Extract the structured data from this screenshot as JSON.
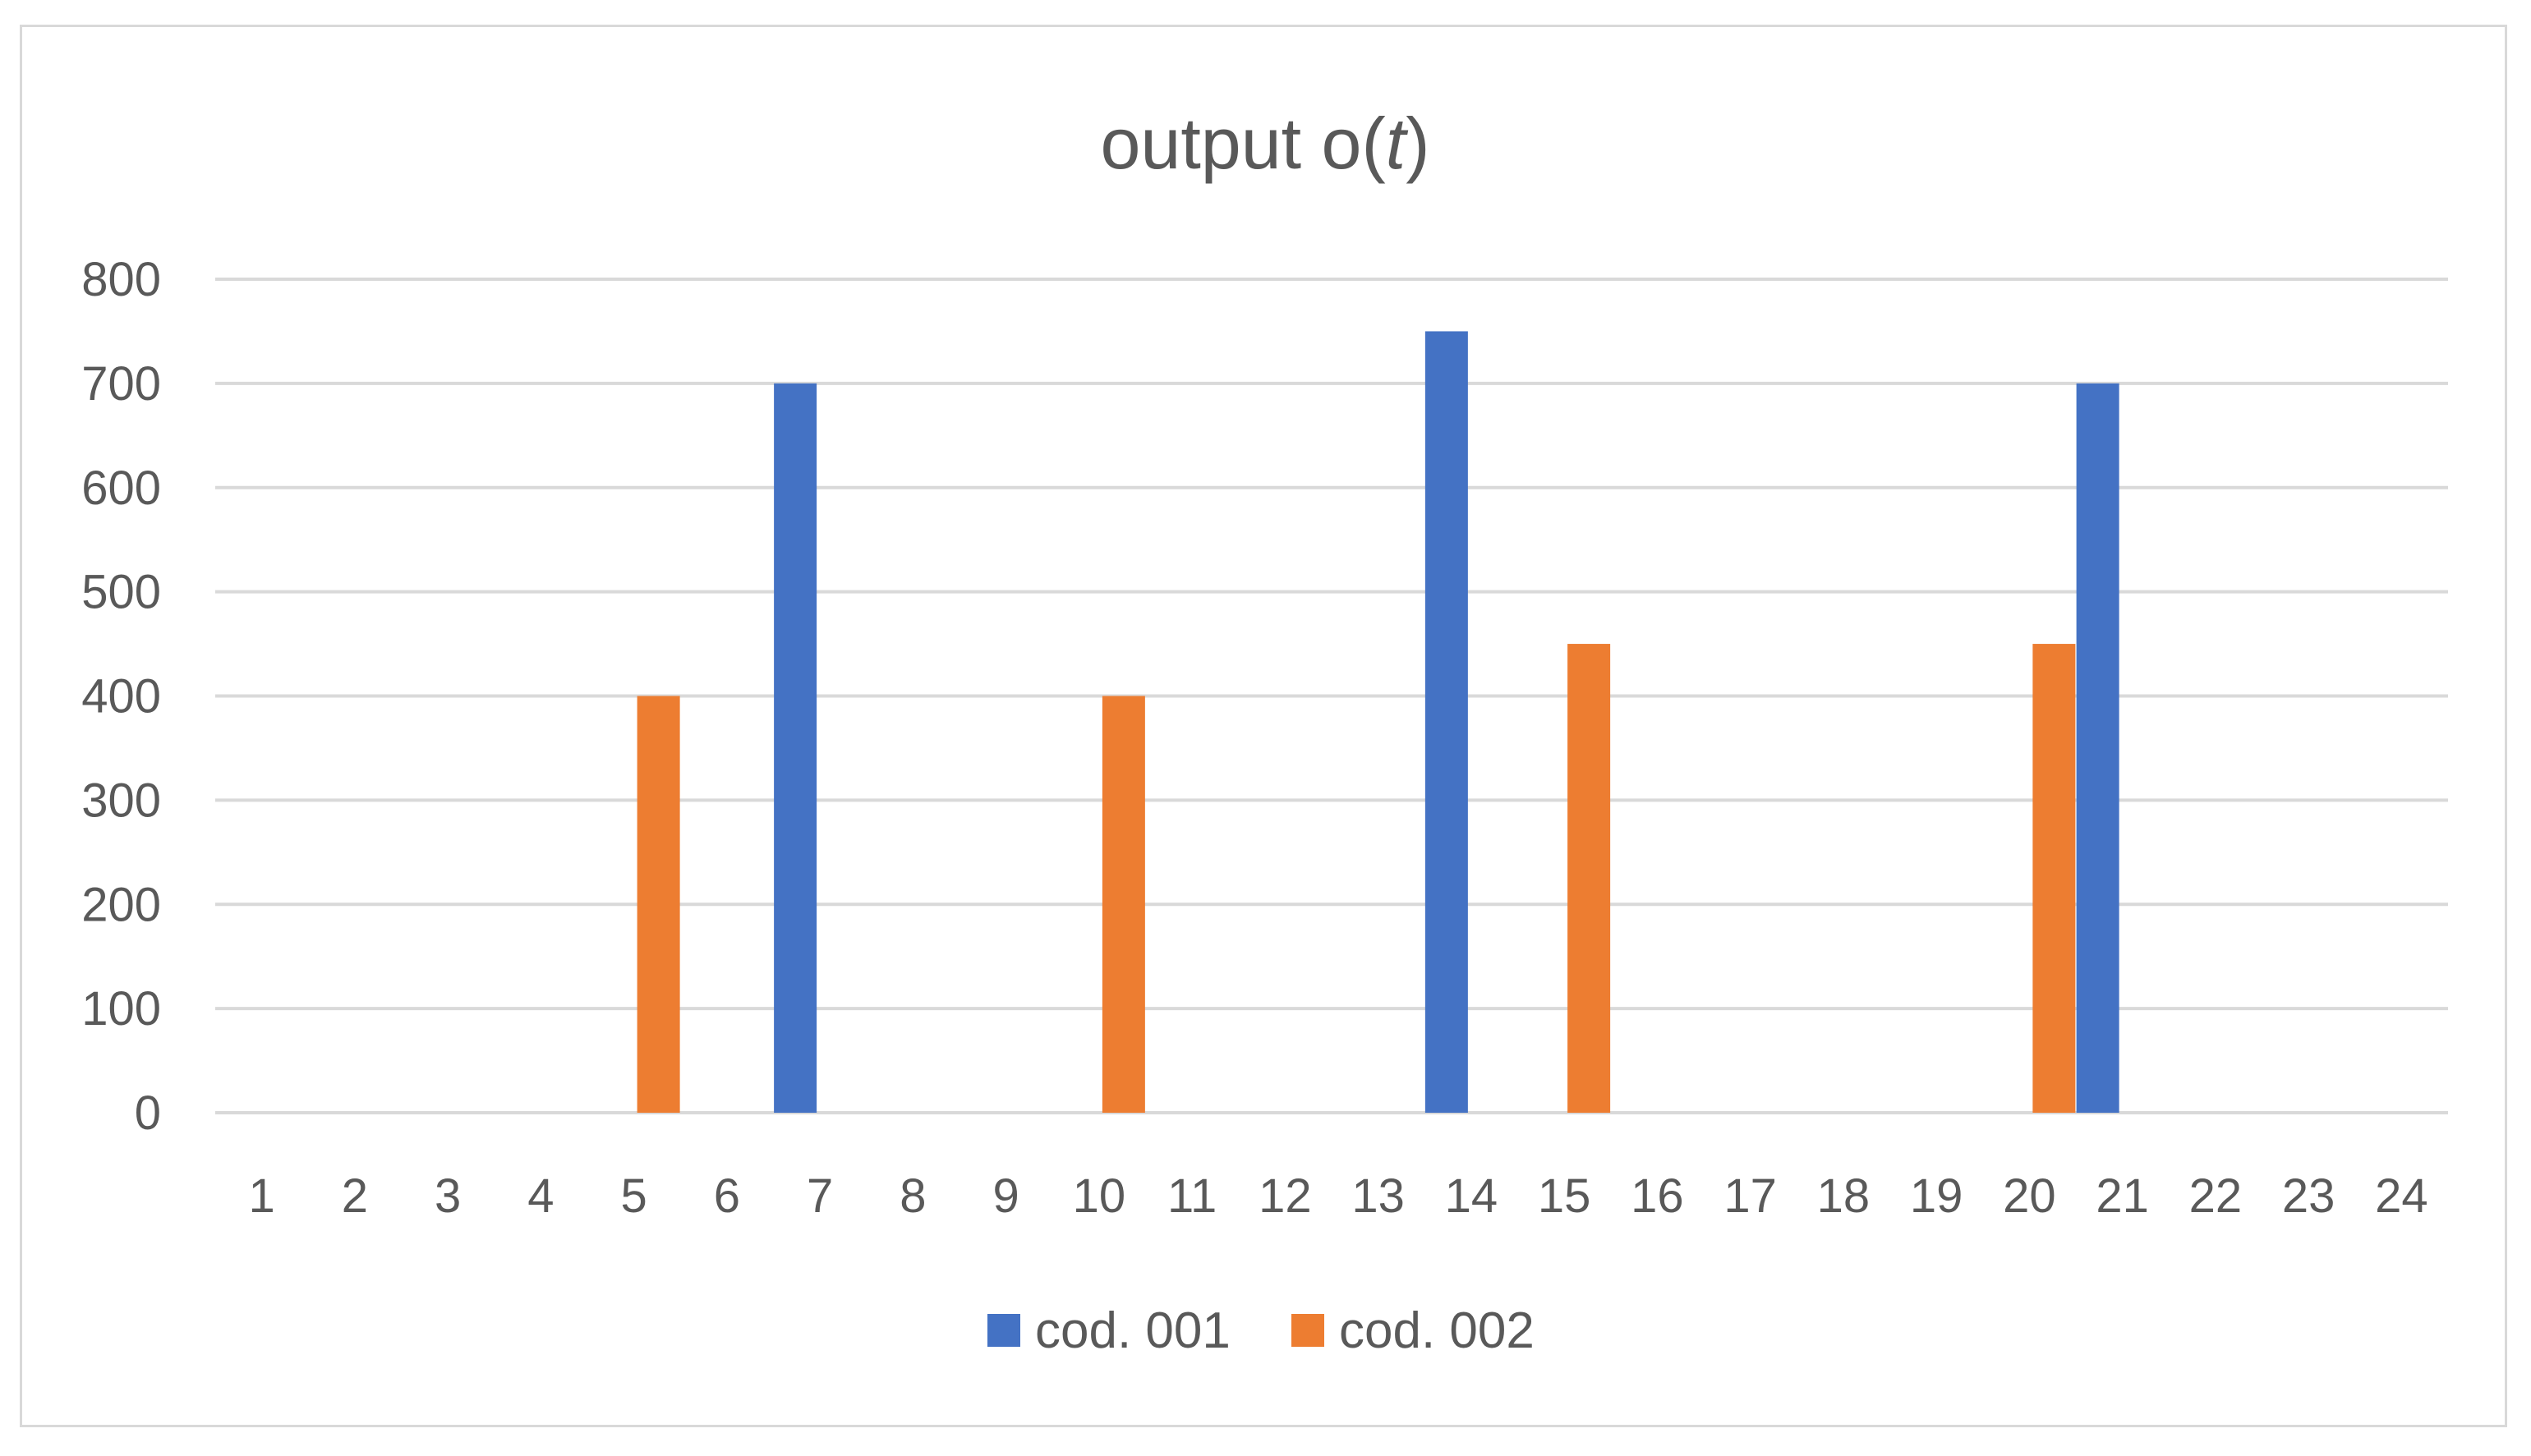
{
  "chart_data": {
    "type": "bar",
    "title": {
      "prefix": "output o(",
      "variable": "t",
      "suffix": ")"
    },
    "categories": [
      "1",
      "2",
      "3",
      "4",
      "5",
      "6",
      "7",
      "8",
      "9",
      "10",
      "11",
      "12",
      "13",
      "14",
      "15",
      "16",
      "17",
      "18",
      "19",
      "20",
      "21",
      "22",
      "23",
      "24"
    ],
    "series": [
      {
        "name": "cod. 001",
        "color": "#4472c4",
        "values": [
          0,
          0,
          0,
          0,
          0,
          0,
          700,
          0,
          0,
          0,
          0,
          0,
          0,
          750,
          0,
          0,
          0,
          0,
          0,
          0,
          700,
          0,
          0,
          0
        ]
      },
      {
        "name": "cod. 002",
        "color": "#ed7d31",
        "values": [
          0,
          0,
          0,
          0,
          400,
          0,
          0,
          0,
          0,
          400,
          0,
          0,
          0,
          0,
          450,
          0,
          0,
          0,
          0,
          450,
          0,
          0,
          0,
          0
        ]
      }
    ],
    "ylim": [
      0,
      800
    ],
    "yticks": [
      0,
      100,
      200,
      300,
      400,
      500,
      600,
      700,
      800
    ],
    "grid": true,
    "legend_position": "bottom"
  }
}
